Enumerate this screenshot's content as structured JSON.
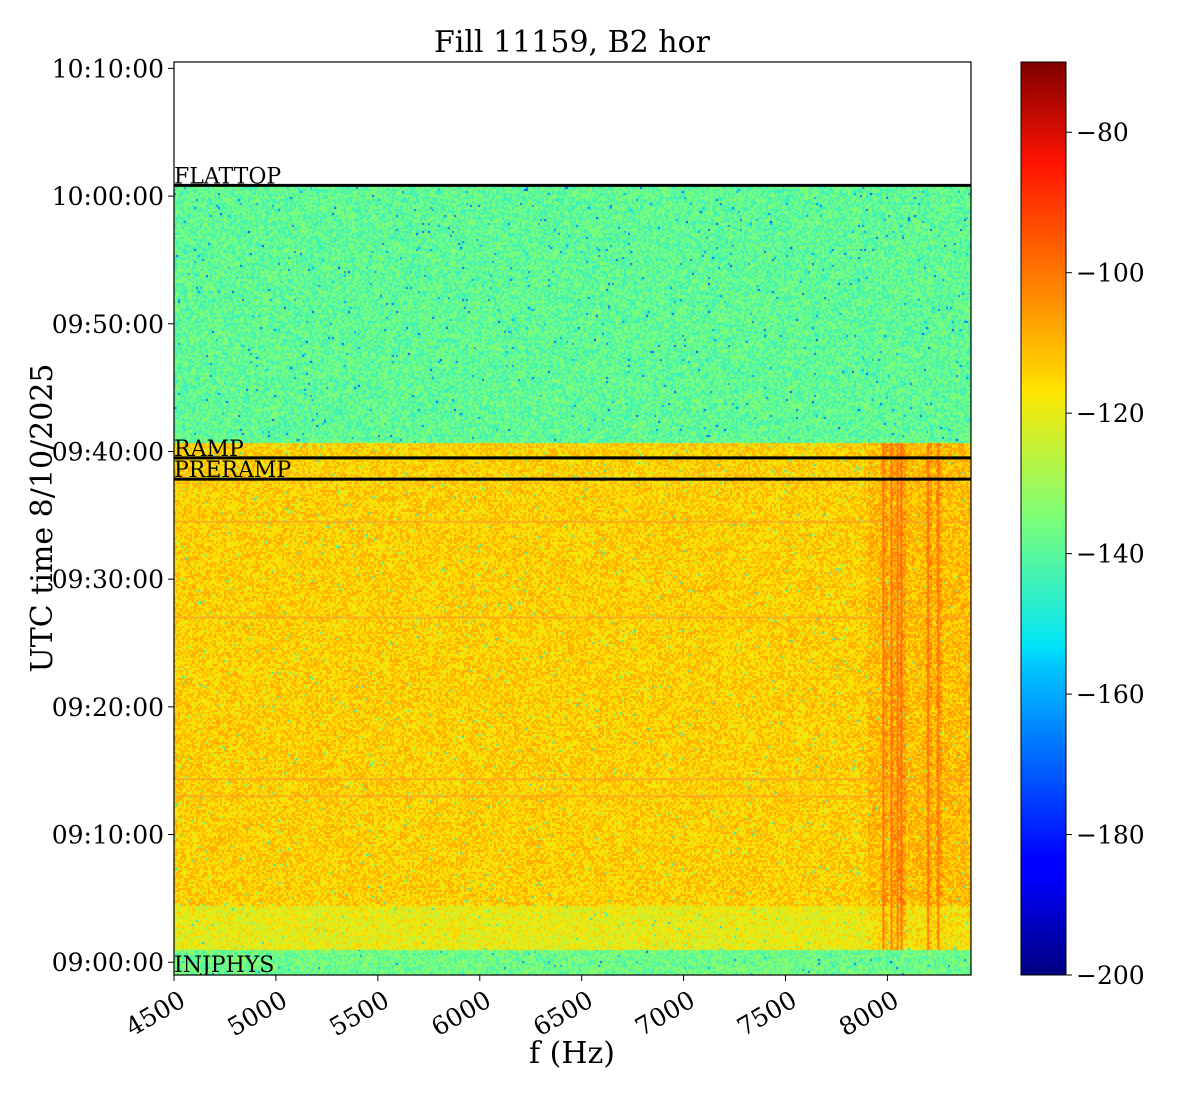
{
  "chart_data": {
    "type": "heatmap",
    "title": "Fill 11159, B2 hor",
    "xlabel": "f (Hz)",
    "ylabel": "UTC time 8/10/2025",
    "colormap": "jet",
    "xlim": [
      4500,
      8410
    ],
    "x_ticks": [
      4500,
      5000,
      5500,
      6000,
      6500,
      7000,
      7500,
      8000
    ],
    "x_tick_labels": [
      "4500",
      "5000",
      "5500",
      "6000",
      "6500",
      "7000",
      "7500",
      "8000"
    ],
    "ylim": [
      "08:59:00",
      "10:10:30"
    ],
    "y_ticks": [
      "09:00:00",
      "09:10:00",
      "09:20:00",
      "09:30:00",
      "09:40:00",
      "09:50:00",
      "10:00:00",
      "10:10:00"
    ],
    "y_tick_labels": [
      "09:00:00",
      "09:10:00",
      "09:20:00",
      "09:30:00",
      "09:40:00",
      "09:50:00",
      "10:00:00",
      "10:10:00"
    ],
    "data_extent": {
      "start": "08:59:00",
      "end": "10:00:50"
    },
    "colorbar": {
      "range": [
        -200,
        -70
      ],
      "ticks": [
        -80,
        -100,
        -120,
        -140,
        -160,
        -180,
        -200
      ],
      "tick_labels": [
        "−80",
        "−100",
        "−120",
        "−140",
        "−160",
        "−180",
        "−200"
      ]
    },
    "segments": [
      {
        "start": "08:59:00",
        "end": "09:01:00",
        "level_db": -137
      },
      {
        "start": "09:01:00",
        "end": "09:04:30",
        "level_db": -120
      },
      {
        "start": "09:04:30",
        "end": "09:40:40",
        "level_db": -114
      },
      {
        "start": "09:40:40",
        "end": "10:00:50",
        "level_db": -139
      }
    ],
    "spectral_lines_hz": [
      7980,
      8020,
      8050,
      8070,
      8200,
      8250
    ],
    "horizontal_streaks": [
      "09:34:30",
      "09:27:00",
      "09:14:20",
      "09:13:00"
    ],
    "annotations": [
      {
        "text": "FLATTOP",
        "time": "10:00:50"
      },
      {
        "text": "RAMP",
        "time": "09:39:30"
      },
      {
        "text": "PRERAMP",
        "time": "09:37:50"
      },
      {
        "text": "INJPHYS",
        "time": "08:59:00"
      }
    ]
  }
}
